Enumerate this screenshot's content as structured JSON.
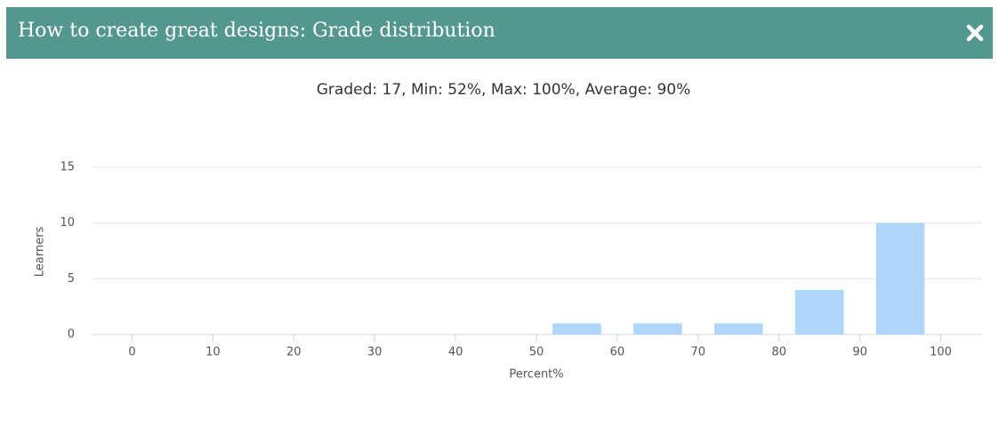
{
  "header": {
    "title": "How to create great designs: Grade distribution"
  },
  "chart_data": {
    "type": "histogram",
    "subtitle": "Graded: 17, Min: 52%, Max: 100%, Average: 90%",
    "x_label": "Percent%",
    "y_label": "Learners",
    "bins": [
      0,
      10,
      20,
      30,
      40,
      50,
      60,
      70,
      80,
      90,
      100
    ],
    "values": [
      0,
      0,
      0,
      0,
      0,
      1,
      1,
      1,
      4,
      10
    ],
    "color": "#aed6fb",
    "xlim": [
      -5,
      105
    ],
    "xticks": [
      0,
      10,
      20,
      30,
      40,
      50,
      60,
      70,
      80,
      90,
      100
    ],
    "ylim": [
      0,
      15
    ],
    "yticks": [
      0,
      5,
      10,
      15
    ],
    "grid": true
  }
}
